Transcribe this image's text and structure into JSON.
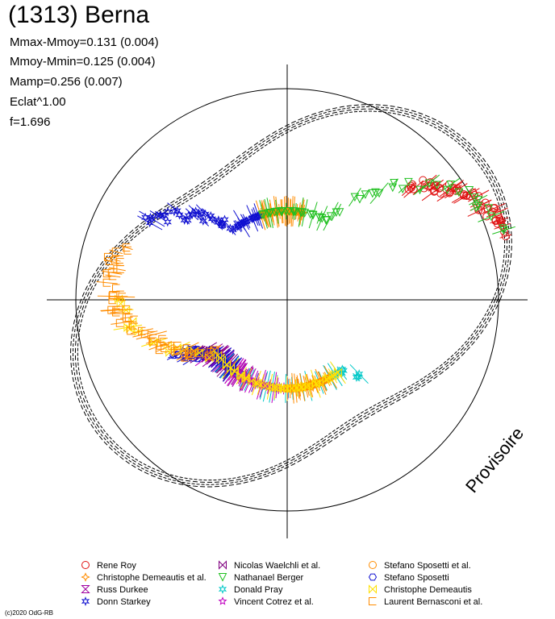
{
  "header": {
    "title": "(1313) Berna",
    "stats": [
      "Mmax-Mmoy=0.131 (0.004)",
      "Mmoy-Mmin=0.125 (0.004)",
      "Mamp=0.256 (0.007)",
      "Eclat^1.00",
      "f=1.696"
    ]
  },
  "watermark": "Provisoire",
  "copyright": "(c)2020 OdG-RB",
  "chart_data": {
    "type": "scatter",
    "title": "(1313) Berna",
    "projection": "polar",
    "description_values": {
      "mmax_mmoy": 0.131,
      "mmoy_mmin": 0.125,
      "mamp": 0.256,
      "frequency": 1.696
    },
    "grid": true,
    "legend_position": "bottom",
    "series": [
      {
        "name": "Rene Roy",
        "color": "#e01010",
        "marker": "circle",
        "phase": [
          0.05,
          0.12
        ]
      },
      {
        "name": "Christophe Demeautis et al.",
        "color": "#ff8c00",
        "marker": "star4",
        "phase": [
          0.22,
          0.3
        ]
      },
      {
        "name": "Russ Durkee",
        "color": "#a000a0",
        "marker": "hourglass",
        "phase": [
          0.6,
          0.68
        ]
      },
      {
        "name": "Donn Starkey",
        "color": "#1010d0",
        "marker": "star6",
        "phase": [
          0.3,
          0.42
        ]
      },
      {
        "name": "Nicolas Waelchli et al.",
        "color": "#800080",
        "marker": "bowtie",
        "phase": [
          0.58,
          0.64
        ]
      },
      {
        "name": "Nathanael Berger",
        "color": "#20c020",
        "marker": "triangle-down",
        "phase": [
          0.05,
          0.3
        ]
      },
      {
        "name": "Donald Pray",
        "color": "#00c8c8",
        "marker": "star6",
        "phase": [
          0.62,
          0.88
        ]
      },
      {
        "name": "Vincent Cotrez et al.",
        "color": "#c000c0",
        "marker": "star5",
        "phase": [
          0.6,
          0.75
        ]
      },
      {
        "name": "Stefano Sposetti et al.",
        "color": "#ff8c00",
        "marker": "circle",
        "phase": [
          0.75,
          0.83
        ]
      },
      {
        "name": "Stefano Sposetti",
        "color": "#1010d0",
        "marker": "hexagon",
        "phase": [
          0.57,
          0.65
        ]
      },
      {
        "name": "Christophe Demeautis",
        "color": "#ffe000",
        "marker": "bowtie",
        "phase": [
          0.5,
          0.85
        ]
      },
      {
        "name": "Laurent Bernasconi et al.",
        "color": "#ff8c00",
        "marker": "square-open",
        "phase": [
          0.45,
          0.6
        ]
      }
    ]
  }
}
